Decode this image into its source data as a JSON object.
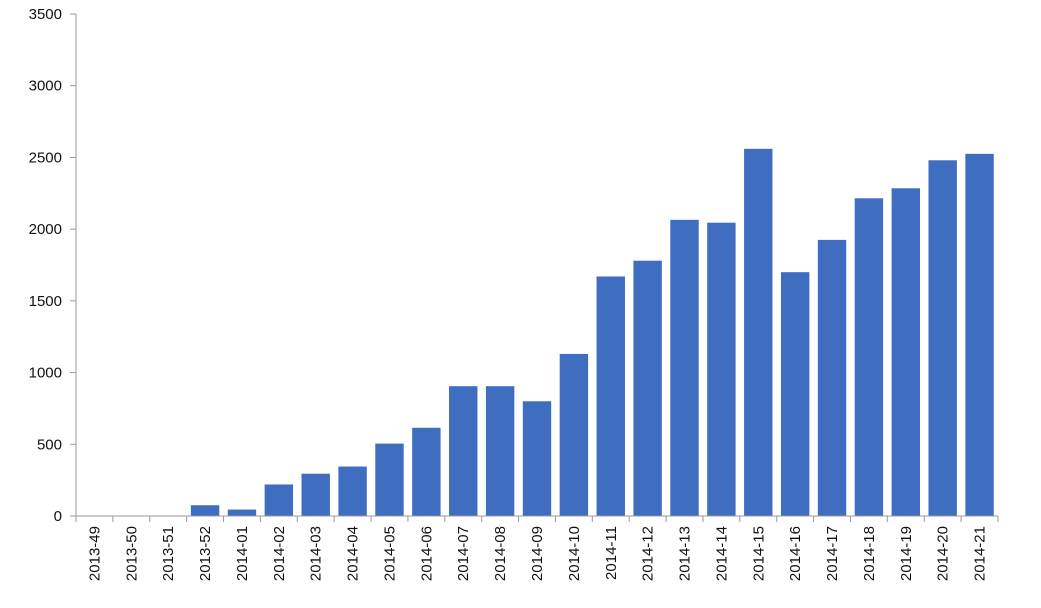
{
  "chart_data": {
    "type": "bar",
    "categories": [
      "2013-49",
      "2013-50",
      "2013-51",
      "2013-52",
      "2014-01",
      "2014-02",
      "2014-03",
      "2014-04",
      "2014-05",
      "2014-06",
      "2014-07",
      "2014-08",
      "2014-09",
      "2014-10",
      "2014-11",
      "2014-12",
      "2014-13",
      "2014-14",
      "2014-15",
      "2014-16",
      "2014-17",
      "2014-18",
      "2014-19",
      "2014-20",
      "2014-21"
    ],
    "values": [
      2,
      2,
      2,
      75,
      45,
      220,
      295,
      345,
      505,
      615,
      905,
      905,
      800,
      1130,
      1670,
      1780,
      2065,
      2045,
      2560,
      1700,
      1925,
      2215,
      2285,
      2480,
      2525
    ],
    "title": "",
    "xlabel": "",
    "ylabel": "",
    "ylim": [
      0,
      3500
    ],
    "yticks": [
      "0",
      "500",
      "1000",
      "1500",
      "2000",
      "2500",
      "3000",
      "3500"
    ],
    "grid": false,
    "bar_color": "#3f6dbf",
    "axis_color": "#999999"
  }
}
